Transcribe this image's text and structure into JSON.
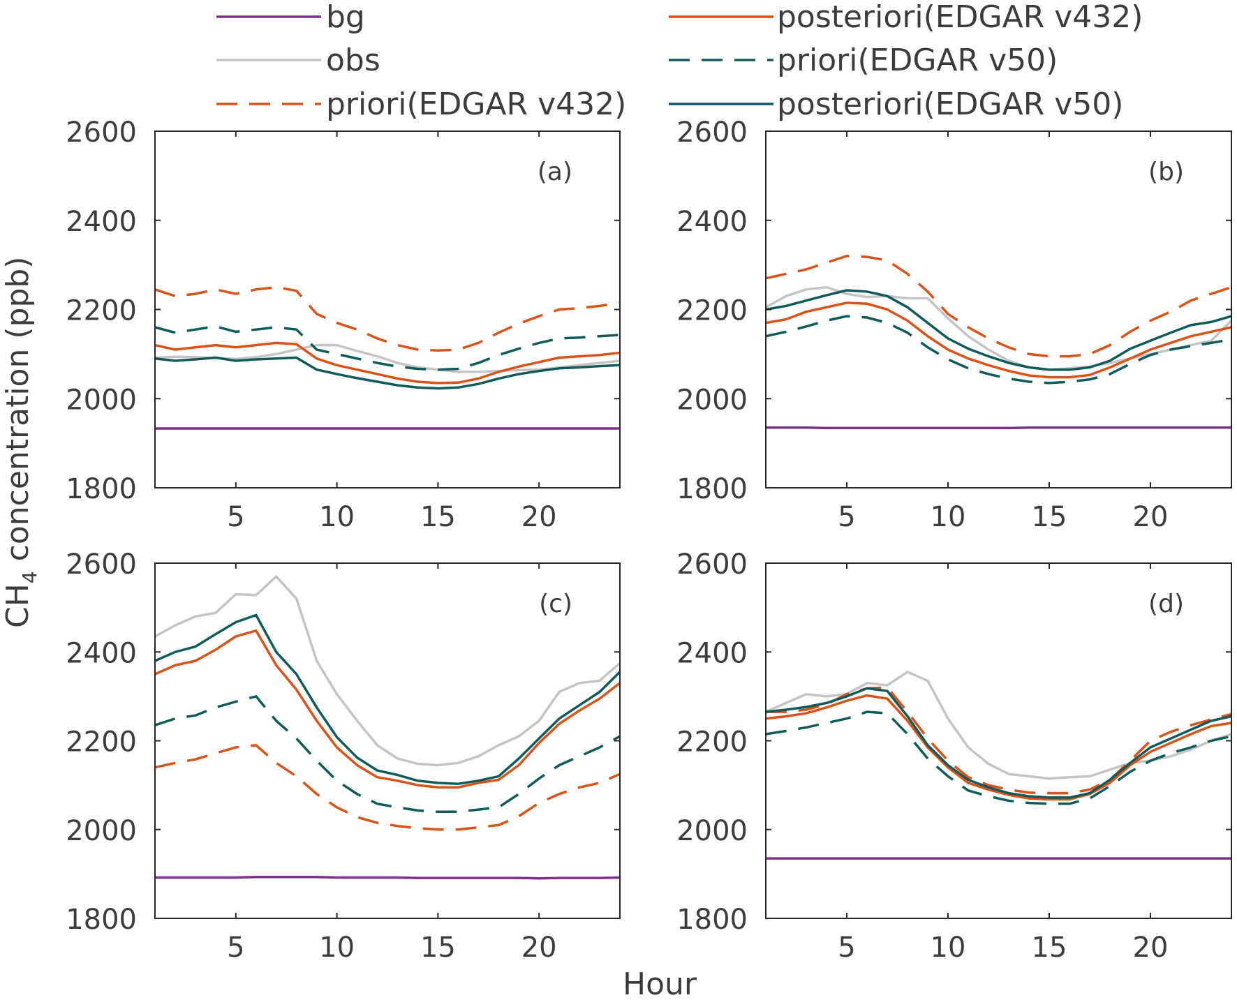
{
  "figure": {
    "ylabel_main": "CH",
    "ylabel_sub": "4",
    "ylabel_rest": " concentration (ppb)",
    "xlabel": "Hour"
  },
  "legend": {
    "items": [
      {
        "key": "bg",
        "label": "bg",
        "color": "#7e2f8e",
        "dash": "solid"
      },
      {
        "key": "obs",
        "label": "obs",
        "color": "#c4c4c4",
        "dash": "solid"
      },
      {
        "key": "priori_v432",
        "label": "priori(EDGAR v432)",
        "color": "#d95319",
        "dash": "dashed"
      },
      {
        "key": "post_v432",
        "label": "posteriori(EDGAR v432)",
        "color": "#d95319",
        "dash": "solid"
      },
      {
        "key": "priori_v50",
        "label": "priori(EDGAR v50)",
        "color": "#0f5a5a",
        "dash": "dashed"
      },
      {
        "key": "post_v50",
        "label": "posteriori(EDGAR v50)",
        "color": "#0f5a5a",
        "dash": "solid"
      }
    ]
  },
  "chart_data": [
    {
      "type": "line",
      "panel_label": "(a)",
      "xlim": [
        1,
        24
      ],
      "ylim": [
        1800,
        2600
      ],
      "xticks": [
        5,
        10,
        15,
        20
      ],
      "yticks": [
        1800,
        2000,
        2200,
        2400,
        2600
      ],
      "x": [
        1,
        2,
        3,
        4,
        5,
        6,
        7,
        8,
        9,
        10,
        11,
        12,
        13,
        14,
        15,
        16,
        17,
        18,
        19,
        20,
        21,
        22,
        23,
        24
      ],
      "series": [
        {
          "key": "bg",
          "name": "bg",
          "values": [
            1933,
            1933,
            1933,
            1933,
            1933,
            1933,
            1933,
            1933,
            1933,
            1933,
            1933,
            1933,
            1933,
            1933,
            1933,
            1933,
            1933,
            1933,
            1933,
            1933,
            1933,
            1933,
            1933,
            1933
          ]
        },
        {
          "key": "obs",
          "name": "obs",
          "values": [
            2092,
            2094,
            2093,
            2091,
            2089,
            2093,
            2100,
            2110,
            2120,
            2120,
            2107,
            2095,
            2080,
            2070,
            2065,
            2060,
            2060,
            2062,
            2064,
            2065,
            2070,
            2075,
            2080,
            2085
          ]
        },
        {
          "key": "priori_v432",
          "name": "priori(EDGAR v432)",
          "values": [
            2245,
            2230,
            2235,
            2245,
            2235,
            2245,
            2250,
            2242,
            2190,
            2170,
            2155,
            2135,
            2120,
            2110,
            2108,
            2110,
            2125,
            2148,
            2168,
            2185,
            2200,
            2203,
            2208,
            2215
          ]
        },
        {
          "key": "post_v432",
          "name": "posteriori(EDGAR v432)",
          "values": [
            2120,
            2110,
            2115,
            2120,
            2115,
            2120,
            2125,
            2122,
            2090,
            2075,
            2065,
            2055,
            2045,
            2038,
            2035,
            2036,
            2045,
            2060,
            2072,
            2082,
            2092,
            2095,
            2098,
            2103
          ]
        },
        {
          "key": "priori_v50",
          "name": "priori(EDGAR v50)",
          "values": [
            2160,
            2148,
            2155,
            2162,
            2150,
            2155,
            2160,
            2155,
            2110,
            2100,
            2090,
            2080,
            2072,
            2067,
            2065,
            2067,
            2080,
            2098,
            2112,
            2125,
            2135,
            2137,
            2140,
            2143
          ]
        },
        {
          "key": "post_v50",
          "name": "posteriori(EDGAR v50)",
          "values": [
            2090,
            2085,
            2088,
            2092,
            2085,
            2088,
            2090,
            2092,
            2065,
            2055,
            2046,
            2038,
            2030,
            2025,
            2023,
            2025,
            2033,
            2045,
            2055,
            2062,
            2068,
            2070,
            2073,
            2075
          ]
        }
      ]
    },
    {
      "type": "line",
      "panel_label": "(b)",
      "xlim": [
        1,
        24
      ],
      "ylim": [
        1800,
        2600
      ],
      "xticks": [
        5,
        10,
        15,
        20
      ],
      "yticks": [
        1800,
        2000,
        2200,
        2400,
        2600
      ],
      "x": [
        1,
        2,
        3,
        4,
        5,
        6,
        7,
        8,
        9,
        10,
        11,
        12,
        13,
        14,
        15,
        16,
        17,
        18,
        19,
        20,
        21,
        22,
        23,
        24
      ],
      "series": [
        {
          "key": "bg",
          "name": "bg",
          "values": [
            1935,
            1935,
            1935,
            1934,
            1934,
            1934,
            1934,
            1934,
            1934,
            1934,
            1934,
            1934,
            1934,
            1935,
            1935,
            1935,
            1935,
            1935,
            1935,
            1935,
            1935,
            1935,
            1935,
            1935
          ]
        },
        {
          "key": "obs",
          "name": "obs",
          "values": [
            2205,
            2230,
            2245,
            2250,
            2235,
            2228,
            2230,
            2225,
            2225,
            2180,
            2140,
            2110,
            2085,
            2070,
            2065,
            2068,
            2072,
            2080,
            2090,
            2100,
            2110,
            2120,
            2130,
            2175
          ]
        },
        {
          "key": "priori_v432",
          "name": "priori(EDGAR v432)",
          "values": [
            2270,
            2280,
            2290,
            2305,
            2320,
            2318,
            2310,
            2280,
            2240,
            2190,
            2160,
            2135,
            2115,
            2100,
            2095,
            2095,
            2100,
            2120,
            2150,
            2175,
            2195,
            2220,
            2235,
            2250
          ]
        },
        {
          "key": "post_v432",
          "name": "posteriori(EDGAR v432)",
          "values": [
            2170,
            2178,
            2195,
            2205,
            2215,
            2213,
            2200,
            2175,
            2140,
            2110,
            2090,
            2075,
            2062,
            2052,
            2048,
            2048,
            2053,
            2070,
            2090,
            2110,
            2125,
            2140,
            2150,
            2160
          ]
        },
        {
          "key": "priori_v50",
          "name": "priori(EDGAR v50)",
          "values": [
            2140,
            2150,
            2162,
            2175,
            2185,
            2182,
            2170,
            2148,
            2115,
            2088,
            2068,
            2055,
            2045,
            2038,
            2035,
            2038,
            2043,
            2055,
            2078,
            2098,
            2110,
            2118,
            2125,
            2133
          ]
        },
        {
          "key": "post_v50",
          "name": "posteriori(EDGAR v50)",
          "values": [
            2200,
            2208,
            2220,
            2232,
            2243,
            2240,
            2230,
            2205,
            2170,
            2135,
            2112,
            2095,
            2080,
            2070,
            2065,
            2065,
            2070,
            2085,
            2112,
            2130,
            2148,
            2165,
            2172,
            2185
          ]
        }
      ]
    },
    {
      "type": "line",
      "panel_label": "(c)",
      "xlim": [
        1,
        24
      ],
      "ylim": [
        1800,
        2600
      ],
      "xticks": [
        5,
        10,
        15,
        20
      ],
      "yticks": [
        1800,
        2000,
        2200,
        2400,
        2600
      ],
      "x": [
        1,
        2,
        3,
        4,
        5,
        6,
        7,
        8,
        9,
        10,
        11,
        12,
        13,
        14,
        15,
        16,
        17,
        18,
        19,
        20,
        21,
        22,
        23,
        24
      ],
      "series": [
        {
          "key": "bg",
          "name": "bg",
          "values": [
            1892,
            1892,
            1892,
            1892,
            1892,
            1893,
            1893,
            1893,
            1893,
            1892,
            1892,
            1892,
            1892,
            1891,
            1891,
            1891,
            1891,
            1891,
            1891,
            1890,
            1891,
            1891,
            1891,
            1892
          ]
        },
        {
          "key": "obs",
          "name": "obs",
          "values": [
            2435,
            2460,
            2480,
            2488,
            2530,
            2528,
            2570,
            2520,
            2380,
            2305,
            2245,
            2190,
            2160,
            2148,
            2145,
            2150,
            2165,
            2190,
            2210,
            2245,
            2310,
            2330,
            2335,
            2375
          ]
        },
        {
          "key": "priori_v432",
          "name": "priori(EDGAR v432)",
          "values": [
            2140,
            2150,
            2158,
            2172,
            2185,
            2190,
            2150,
            2120,
            2080,
            2050,
            2028,
            2015,
            2008,
            2003,
            2000,
            2000,
            2005,
            2010,
            2030,
            2060,
            2080,
            2095,
            2105,
            2125
          ]
        },
        {
          "key": "post_v432",
          "name": "posteriori(EDGAR v432)",
          "values": [
            2350,
            2370,
            2380,
            2405,
            2435,
            2448,
            2370,
            2315,
            2245,
            2185,
            2145,
            2118,
            2110,
            2100,
            2095,
            2095,
            2105,
            2112,
            2145,
            2195,
            2238,
            2268,
            2295,
            2330
          ]
        },
        {
          "key": "priori_v50",
          "name": "priori(EDGAR v50)",
          "values": [
            2235,
            2250,
            2257,
            2275,
            2288,
            2300,
            2245,
            2205,
            2155,
            2110,
            2080,
            2058,
            2050,
            2043,
            2040,
            2040,
            2045,
            2050,
            2080,
            2115,
            2145,
            2165,
            2185,
            2210
          ]
        },
        {
          "key": "post_v50",
          "name": "posteriori(EDGAR v50)",
          "values": [
            2380,
            2400,
            2412,
            2440,
            2467,
            2483,
            2400,
            2350,
            2275,
            2208,
            2162,
            2133,
            2123,
            2110,
            2105,
            2103,
            2110,
            2120,
            2160,
            2205,
            2250,
            2280,
            2310,
            2355
          ]
        }
      ]
    },
    {
      "type": "line",
      "panel_label": "(d)",
      "xlim": [
        1,
        24
      ],
      "ylim": [
        1800,
        2600
      ],
      "xticks": [
        5,
        10,
        15,
        20
      ],
      "yticks": [
        1800,
        2000,
        2200,
        2400,
        2600
      ],
      "x": [
        1,
        2,
        3,
        4,
        5,
        6,
        7,
        8,
        9,
        10,
        11,
        12,
        13,
        14,
        15,
        16,
        17,
        18,
        19,
        20,
        21,
        22,
        23,
        24
      ],
      "series": [
        {
          "key": "bg",
          "name": "bg",
          "values": [
            1935,
            1935,
            1935,
            1935,
            1935,
            1935,
            1935,
            1935,
            1935,
            1935,
            1935,
            1935,
            1935,
            1935,
            1935,
            1935,
            1935,
            1935,
            1935,
            1935,
            1935,
            1935,
            1935,
            1935
          ]
        },
        {
          "key": "obs",
          "name": "obs",
          "values": [
            2265,
            2285,
            2305,
            2300,
            2305,
            2330,
            2325,
            2355,
            2335,
            2250,
            2185,
            2148,
            2125,
            2120,
            2115,
            2118,
            2120,
            2135,
            2150,
            2155,
            2165,
            2180,
            2200,
            2215
          ]
        },
        {
          "key": "priori_v432",
          "name": "priori(EDGAR v432)",
          "values": [
            2265,
            2265,
            2270,
            2282,
            2305,
            2318,
            2320,
            2265,
            2205,
            2155,
            2118,
            2100,
            2090,
            2083,
            2082,
            2082,
            2090,
            2112,
            2155,
            2200,
            2220,
            2235,
            2248,
            2260
          ]
        },
        {
          "key": "post_v432",
          "name": "posteriori(EDGAR v432)",
          "values": [
            2250,
            2255,
            2262,
            2275,
            2290,
            2302,
            2295,
            2245,
            2185,
            2140,
            2105,
            2090,
            2078,
            2070,
            2068,
            2068,
            2080,
            2105,
            2145,
            2175,
            2195,
            2215,
            2233,
            2240
          ]
        },
        {
          "key": "priori_v50",
          "name": "priori(EDGAR v50)",
          "values": [
            2215,
            2222,
            2230,
            2240,
            2250,
            2265,
            2262,
            2215,
            2160,
            2120,
            2088,
            2075,
            2065,
            2060,
            2058,
            2058,
            2070,
            2098,
            2130,
            2155,
            2172,
            2185,
            2200,
            2210
          ]
        },
        {
          "key": "post_v50",
          "name": "posteriori(EDGAR v50)",
          "values": [
            2265,
            2270,
            2276,
            2285,
            2300,
            2318,
            2312,
            2255,
            2190,
            2145,
            2112,
            2095,
            2082,
            2075,
            2072,
            2072,
            2082,
            2112,
            2150,
            2185,
            2205,
            2225,
            2245,
            2255
          ]
        }
      ]
    }
  ]
}
